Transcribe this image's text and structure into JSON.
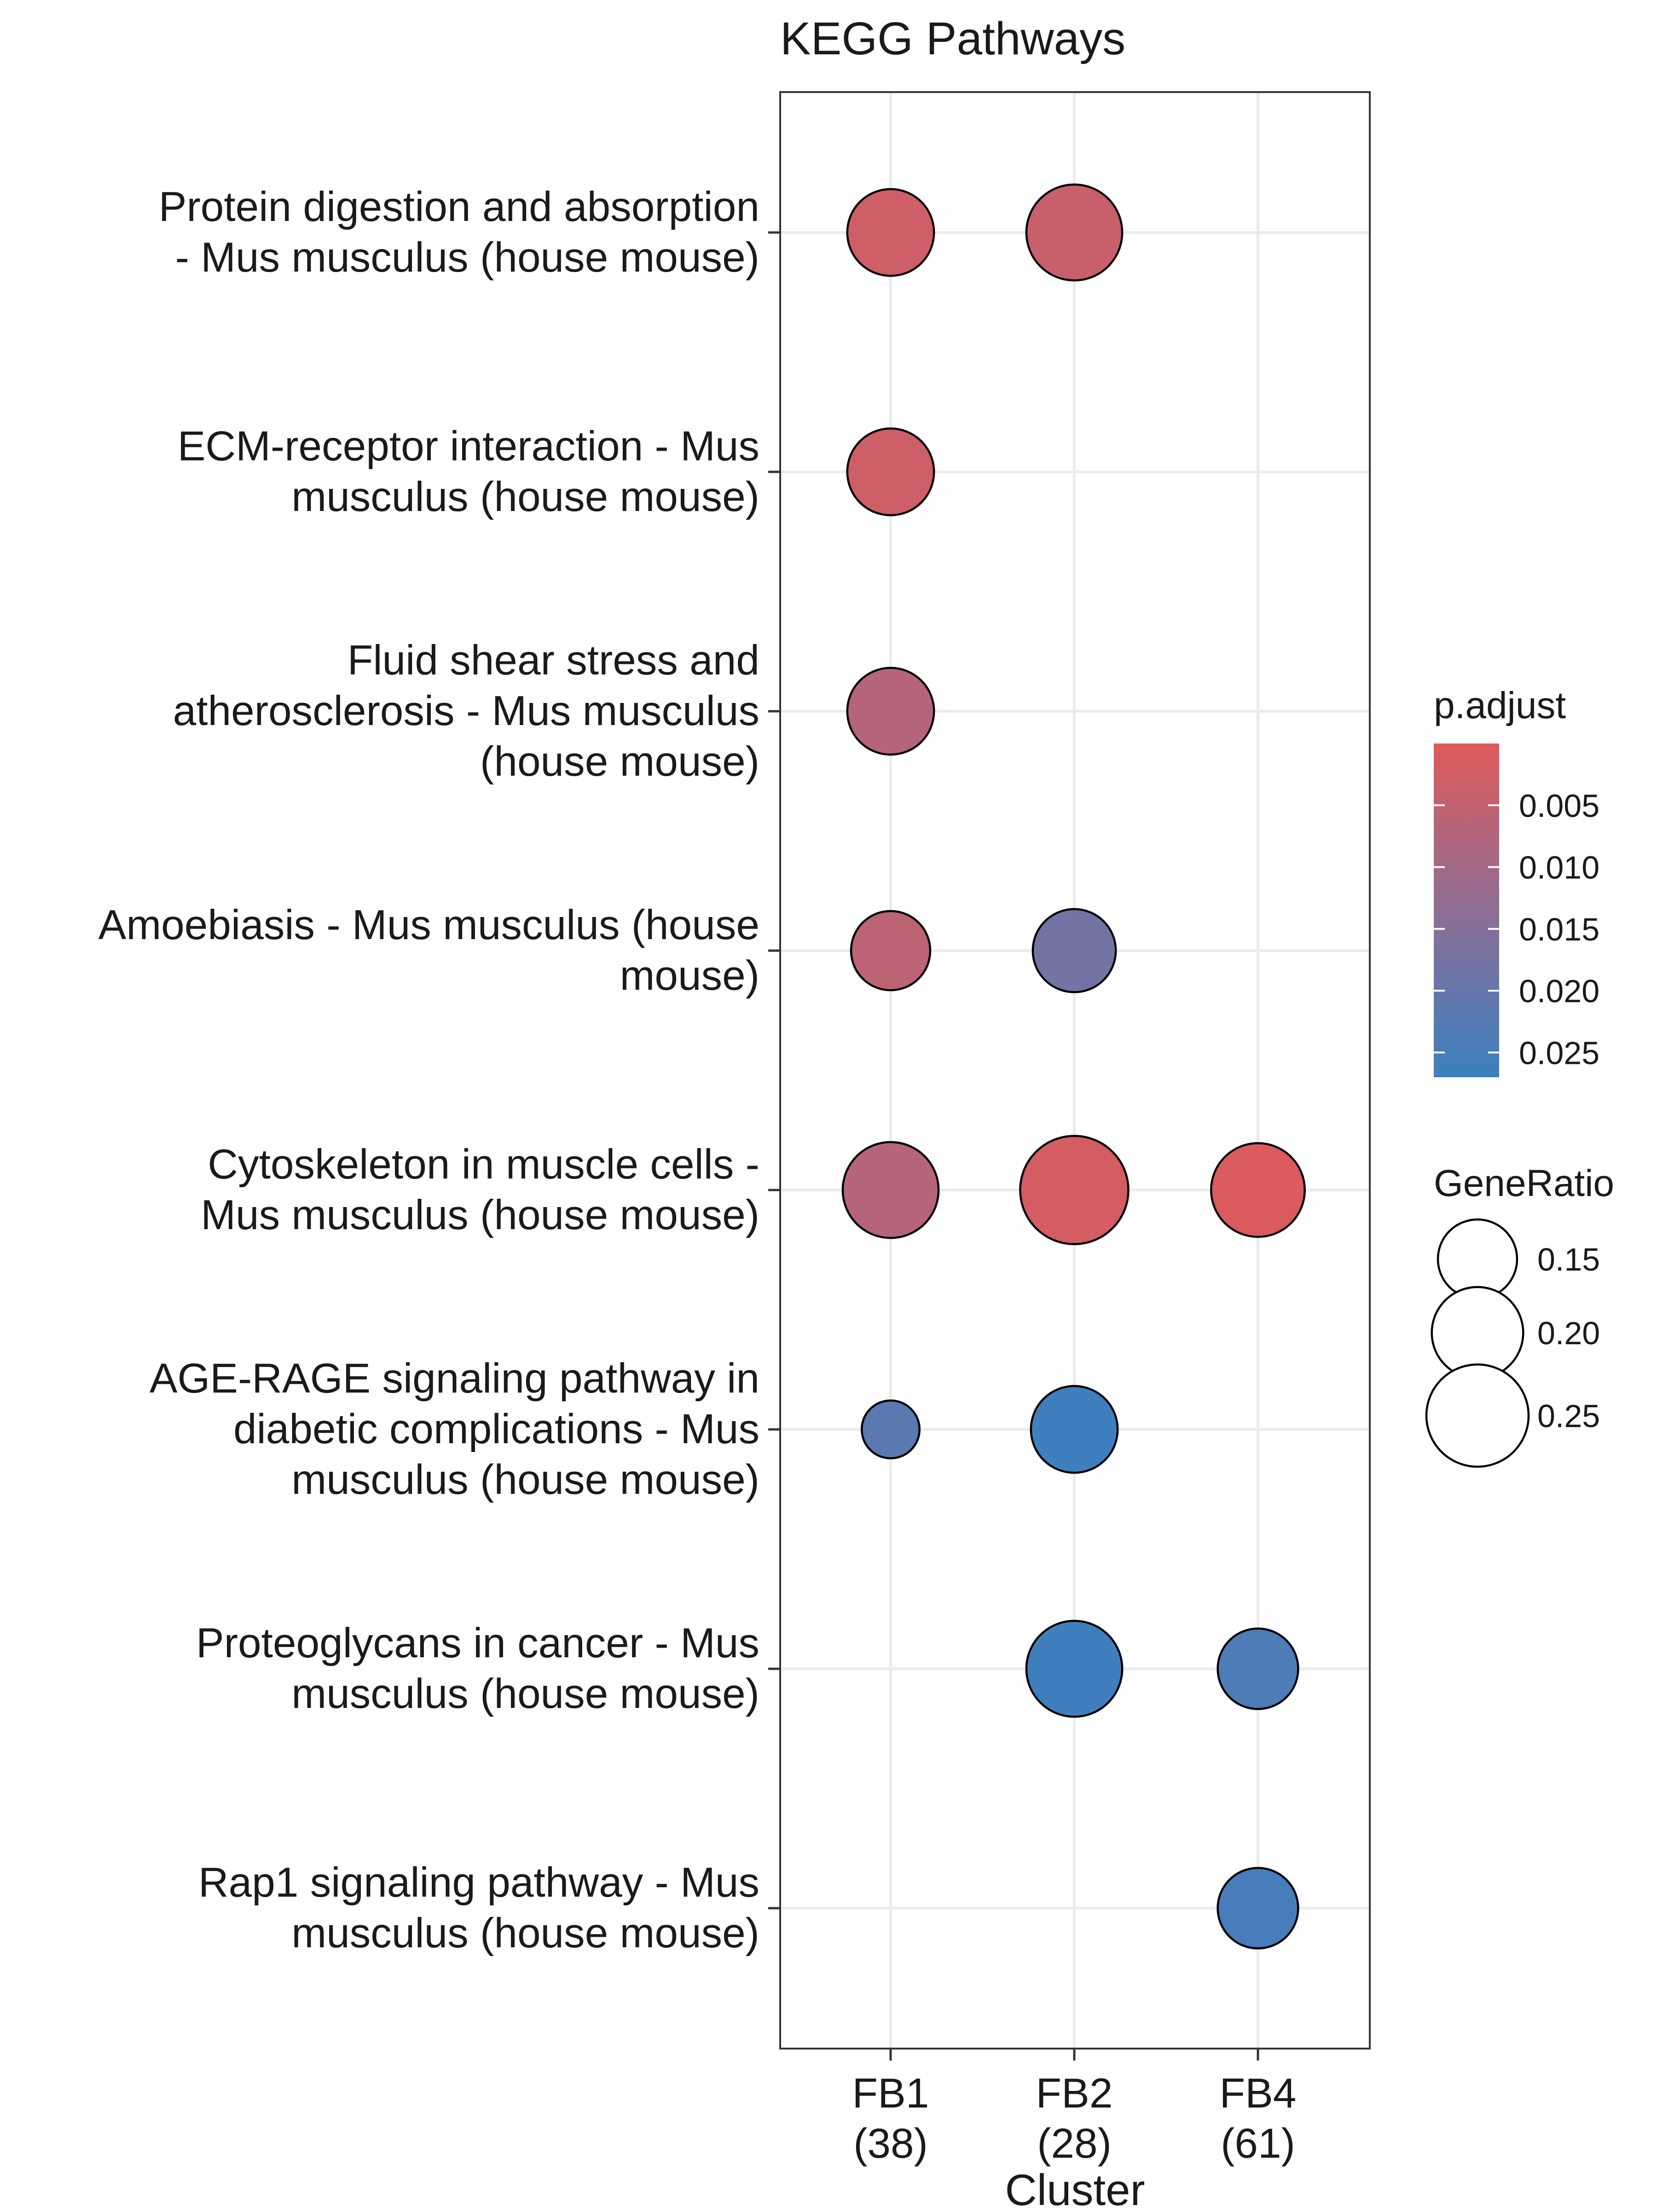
{
  "chart_data": {
    "type": "dotplot",
    "title": "KEGG Pathways",
    "xlabel": "Cluster",
    "ylabel": "",
    "x_categories": [
      {
        "name": "FB1",
        "count": "(38)"
      },
      {
        "name": "FB2",
        "count": "(28)"
      },
      {
        "name": "FB4",
        "count": "(61)"
      }
    ],
    "y_categories": [
      [
        "Protein digestion and absorption",
        "- Mus musculus (house mouse)"
      ],
      [
        "ECM-receptor interaction - Mus",
        "musculus (house mouse)"
      ],
      [
        "Fluid shear stress and",
        "atherosclerosis - Mus musculus",
        "(house mouse)"
      ],
      [
        "Amoebiasis - Mus musculus (house",
        "mouse)"
      ],
      [
        "Cytoskeleton in muscle cells -",
        "Mus musculus (house mouse)"
      ],
      [
        "AGE-RAGE signaling pathway in",
        "diabetic complications - Mus",
        "musculus (house mouse)"
      ],
      [
        "Proteoglycans in cancer - Mus",
        "musculus (house mouse)"
      ],
      [
        "Rap1 signaling pathway - Mus",
        "musculus (house mouse)"
      ]
    ],
    "points": [
      {
        "x": 0,
        "y": 0,
        "gene_ratio": 0.18,
        "p_adjust": 0.003
      },
      {
        "x": 1,
        "y": 0,
        "gene_ratio": 0.22,
        "p_adjust": 0.004
      },
      {
        "x": 0,
        "y": 1,
        "gene_ratio": 0.18,
        "p_adjust": 0.003
      },
      {
        "x": 0,
        "y": 2,
        "gene_ratio": 0.18,
        "p_adjust": 0.007
      },
      {
        "x": 0,
        "y": 3,
        "gene_ratio": 0.15,
        "p_adjust": 0.006
      },
      {
        "x": 1,
        "y": 3,
        "gene_ratio": 0.165,
        "p_adjust": 0.018
      },
      {
        "x": 0,
        "y": 4,
        "gene_ratio": 0.22,
        "p_adjust": 0.007
      },
      {
        "x": 1,
        "y": 4,
        "gene_ratio": 0.28,
        "p_adjust": 0.002
      },
      {
        "x": 2,
        "y": 4,
        "gene_ratio": 0.21,
        "p_adjust": 0.001
      },
      {
        "x": 0,
        "y": 5,
        "gene_ratio": 0.08,
        "p_adjust": 0.022
      },
      {
        "x": 1,
        "y": 5,
        "gene_ratio": 0.18,
        "p_adjust": 0.026
      },
      {
        "x": 1,
        "y": 6,
        "gene_ratio": 0.22,
        "p_adjust": 0.026
      },
      {
        "x": 2,
        "y": 6,
        "gene_ratio": 0.155,
        "p_adjust": 0.024
      },
      {
        "x": 2,
        "y": 7,
        "gene_ratio": 0.155,
        "p_adjust": 0.025
      }
    ],
    "color_legend": {
      "title": "p.adjust",
      "range": [
        0.0,
        0.027
      ],
      "low_color": "#E05A5A",
      "high_color": "#3A80C0",
      "ticks": [
        {
          "value": 0.005,
          "label": "0.005"
        },
        {
          "value": 0.01,
          "label": "0.010"
        },
        {
          "value": 0.015,
          "label": "0.015"
        },
        {
          "value": 0.02,
          "label": "0.020"
        },
        {
          "value": 0.025,
          "label": "0.025"
        }
      ]
    },
    "size_legend": {
      "title": "GeneRatio",
      "ticks": [
        {
          "value": 0.15,
          "label": "0.15"
        },
        {
          "value": 0.2,
          "label": "0.20"
        },
        {
          "value": 0.25,
          "label": "0.25"
        }
      ]
    },
    "grid": true,
    "legend_position": "right",
    "colors": {
      "grid": "#EBEBEB",
      "axis": "#333333",
      "point_stroke": "#000000"
    }
  }
}
